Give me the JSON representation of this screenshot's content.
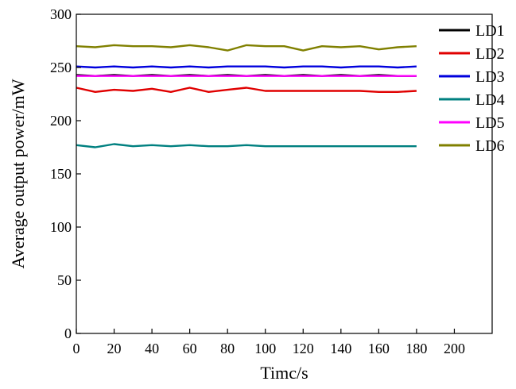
{
  "chart_data": {
    "type": "line",
    "xlabel": "Timc/s",
    "ylabel": "Average output power/mW",
    "xlim": [
      0,
      220
    ],
    "ylim": [
      0,
      300
    ],
    "xticks": [
      0,
      20,
      40,
      60,
      80,
      100,
      120,
      140,
      160,
      180,
      200
    ],
    "yticks": [
      0,
      50,
      100,
      150,
      200,
      250,
      300
    ],
    "grid": false,
    "legend_position": "top-right",
    "x": [
      0,
      10,
      20,
      30,
      40,
      50,
      60,
      70,
      80,
      90,
      100,
      110,
      120,
      130,
      140,
      150,
      160,
      170,
      180
    ],
    "series": [
      {
        "name": "LD1",
        "color": "#000000",
        "values": [
          243,
          242,
          243,
          242,
          243,
          242,
          243,
          242,
          243,
          242,
          243,
          242,
          243,
          242,
          243,
          242,
          243,
          242,
          242
        ]
      },
      {
        "name": "LD2",
        "color": "#e00000",
        "values": [
          231,
          227,
          229,
          228,
          230,
          227,
          231,
          227,
          229,
          231,
          228,
          228,
          228,
          228,
          228,
          228,
          227,
          227,
          228
        ]
      },
      {
        "name": "LD3",
        "color": "#0000dd",
        "values": [
          251,
          250,
          251,
          250,
          251,
          250,
          251,
          250,
          251,
          251,
          251,
          250,
          251,
          251,
          250,
          251,
          251,
          250,
          251
        ]
      },
      {
        "name": "LD4",
        "color": "#008080",
        "values": [
          177,
          175,
          178,
          176,
          177,
          176,
          177,
          176,
          176,
          177,
          176,
          176,
          176,
          176,
          176,
          176,
          176,
          176,
          176
        ]
      },
      {
        "name": "LD5",
        "color": "#ff00ff",
        "values": [
          242,
          242,
          242,
          242,
          242,
          242,
          242,
          242,
          242,
          242,
          242,
          242,
          242,
          242,
          242,
          242,
          242,
          242,
          242
        ]
      },
      {
        "name": "LD6",
        "color": "#808000",
        "values": [
          270,
          269,
          271,
          270,
          270,
          269,
          271,
          269,
          266,
          271,
          270,
          270,
          266,
          270,
          269,
          270,
          267,
          269,
          270
        ]
      }
    ]
  }
}
